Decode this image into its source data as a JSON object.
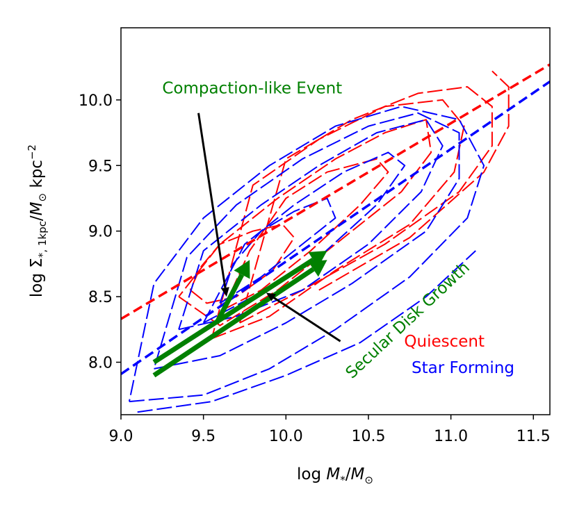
{
  "chart_data": {
    "type": "line",
    "xlabel": "log M*/M⊙",
    "ylabel": "log Σ*, 1kpc/M⊙ kpc⁻²",
    "xlim": [
      9.0,
      11.6
    ],
    "ylim": [
      7.6,
      10.55
    ],
    "xticks": [
      9.0,
      9.5,
      10.0,
      10.5,
      11.0,
      11.5
    ],
    "xtick_labels": [
      "9.0",
      "9.5",
      "10.0",
      "10.5",
      "11.0",
      "11.5"
    ],
    "yticks": [
      8.0,
      8.5,
      9.0,
      9.5,
      10.0
    ],
    "ytick_labels": [
      "8.0",
      "8.5",
      "9.0",
      "9.5",
      "10.0"
    ],
    "grid": false,
    "colors": {
      "quiescent": "#ff0000",
      "star_forming": "#0000ff",
      "annotation": "#008000",
      "arrow": "#000000"
    },
    "series": [
      {
        "name": "Quiescent ridge line",
        "style": "dashed",
        "color_key": "quiescent",
        "x": [
          9.0,
          11.6
        ],
        "y": [
          8.33,
          10.27
        ]
      },
      {
        "name": "Star Forming ridge line",
        "style": "dashed",
        "color_key": "star_forming",
        "x": [
          9.0,
          11.6
        ],
        "y": [
          7.91,
          10.14
        ]
      }
    ],
    "contours": {
      "quiescent": [
        {
          "level": 1,
          "x": [
            9.42,
            9.52,
            9.7,
            9.92,
            10.05,
            9.98,
            9.8,
            9.6,
            9.48,
            9.42
          ],
          "y": [
            8.55,
            8.45,
            8.5,
            8.7,
            8.95,
            9.05,
            9.0,
            8.9,
            8.72,
            8.55
          ]
        },
        {
          "level": 2,
          "x": [
            9.62,
            9.85,
            10.15,
            10.45,
            10.62,
            10.55,
            10.25,
            10.0,
            9.78,
            9.62
          ],
          "y": [
            8.4,
            8.55,
            8.85,
            9.2,
            9.45,
            9.55,
            9.45,
            9.25,
            8.85,
            8.4
          ]
        },
        {
          "level": 3,
          "x": [
            9.35,
            9.6,
            9.95,
            10.35,
            10.7,
            10.88,
            10.85,
            10.6,
            10.3,
            9.95,
            9.6,
            9.35
          ],
          "y": [
            8.5,
            8.28,
            8.55,
            8.95,
            9.3,
            9.6,
            9.85,
            9.75,
            9.55,
            9.25,
            8.9,
            8.5
          ]
        },
        {
          "level": 4,
          "x": [
            9.55,
            9.9,
            10.3,
            10.75,
            11.02,
            11.08,
            10.95,
            10.6,
            10.2,
            9.8,
            9.55
          ],
          "y": [
            8.18,
            8.35,
            8.7,
            9.05,
            9.45,
            9.8,
            10.0,
            9.95,
            9.7,
            9.35,
            8.18
          ]
        },
        {
          "level": 5,
          "x": [
            9.72,
            10.1,
            10.6,
            11.05,
            11.25,
            11.25,
            11.1,
            10.8,
            10.4,
            10.0,
            9.72
          ],
          "y": [
            8.3,
            8.55,
            8.9,
            9.3,
            9.65,
            9.95,
            10.1,
            10.05,
            9.85,
            9.55,
            8.3
          ]
        },
        {
          "level": 6,
          "x": [
            10.2,
            10.75,
            11.2,
            11.35,
            11.35,
            11.25
          ],
          "y": [
            8.55,
            8.95,
            9.45,
            9.8,
            10.1,
            10.22
          ]
        }
      ],
      "star_forming": [
        {
          "level": 1,
          "x": [
            9.6,
            9.85,
            10.1,
            10.3,
            10.25,
            10.05,
            9.85,
            9.68,
            9.6
          ],
          "y": [
            8.45,
            8.65,
            8.9,
            9.1,
            9.25,
            9.15,
            9.0,
            8.75,
            8.45
          ]
        },
        {
          "level": 2,
          "x": [
            9.5,
            9.8,
            10.2,
            10.55,
            10.72,
            10.62,
            10.35,
            10.05,
            9.75,
            9.5
          ],
          "y": [
            8.3,
            8.5,
            8.8,
            9.2,
            9.5,
            9.6,
            9.45,
            9.2,
            8.9,
            8.3
          ]
        },
        {
          "level": 3,
          "x": [
            9.35,
            9.7,
            10.1,
            10.5,
            10.82,
            10.95,
            10.85,
            10.55,
            10.2,
            9.85,
            9.5,
            9.35
          ],
          "y": [
            8.25,
            8.35,
            8.55,
            8.9,
            9.3,
            9.65,
            9.85,
            9.75,
            9.5,
            9.2,
            8.85,
            8.25
          ]
        },
        {
          "level": 4,
          "x": [
            9.2,
            9.6,
            10.0,
            10.4,
            10.85,
            11.05,
            11.05,
            10.8,
            10.5,
            10.1,
            9.7,
            9.4,
            9.2
          ],
          "y": [
            7.95,
            8.05,
            8.3,
            8.6,
            9.0,
            9.4,
            9.75,
            9.9,
            9.8,
            9.55,
            9.2,
            8.8,
            7.95
          ]
        },
        {
          "level": 5,
          "x": [
            9.05,
            9.5,
            9.9,
            10.3,
            10.75,
            11.1,
            11.2,
            11.05,
            10.7,
            10.3,
            9.9,
            9.5,
            9.2,
            9.05
          ],
          "y": [
            7.7,
            7.75,
            7.95,
            8.25,
            8.65,
            9.1,
            9.5,
            9.85,
            9.95,
            9.8,
            9.5,
            9.1,
            8.6,
            7.7
          ]
        },
        {
          "level": 6,
          "x": [
            9.1,
            9.55,
            10.0,
            10.45,
            10.85,
            11.15
          ],
          "y": [
            7.62,
            7.7,
            7.9,
            8.15,
            8.5,
            8.85
          ]
        }
      ]
    },
    "arrows": [
      {
        "name": "secular-disk-growth-arrow-1",
        "color_key": "annotation",
        "from": [
          9.2,
          8.0
        ],
        "to": [
          10.25,
          8.85
        ]
      },
      {
        "name": "secular-disk-growth-arrow-2",
        "color_key": "annotation",
        "from": [
          9.2,
          7.9
        ],
        "to": [
          10.25,
          8.78
        ]
      },
      {
        "name": "compaction-arrow",
        "color_key": "annotation",
        "from": [
          9.58,
          8.3
        ],
        "to": [
          9.78,
          8.78
        ]
      },
      {
        "name": "compaction-pointer",
        "color_key": "arrow",
        "from": [
          9.47,
          9.9
        ],
        "to": [
          9.64,
          8.5
        ]
      },
      {
        "name": "secular-pointer",
        "color_key": "arrow",
        "from": [
          10.33,
          8.16
        ],
        "to": [
          9.88,
          8.53
        ]
      }
    ],
    "annotations": [
      {
        "name": "compaction-label",
        "text": "Compaction-like Event",
        "x": 9.25,
        "y": 10.05,
        "rotation": 0,
        "color_key": "annotation"
      },
      {
        "name": "secular-label",
        "text": "Secular Disk Growth",
        "x": 10.4,
        "y": 7.87,
        "rotation": -43,
        "color_key": "annotation"
      }
    ],
    "legend": {
      "placement": "bottom-right",
      "entries": [
        {
          "label": "Quiescent",
          "color_key": "quiescent"
        },
        {
          "label": "Star Forming",
          "color_key": "star_forming"
        }
      ]
    }
  }
}
